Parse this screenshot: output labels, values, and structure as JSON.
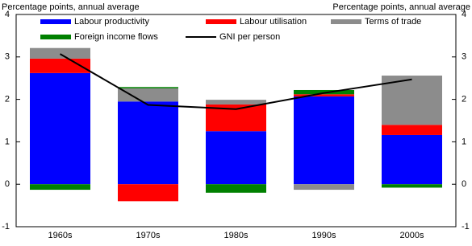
{
  "chart_data": {
    "type": "bar",
    "y_label_left": "Percentage points, annual average",
    "y_label_right": "Percentage points, annual average",
    "stacked": true,
    "categories": [
      "1960s",
      "1970s",
      "1980s",
      "1990s",
      "2000s"
    ],
    "series": [
      {
        "name": "Labour productivity",
        "color": "#0000ff",
        "values": [
          2.62,
          1.95,
          1.25,
          2.07,
          1.16
        ]
      },
      {
        "name": "Labour utilisation",
        "color": "#ff0000",
        "values": [
          0.34,
          -0.4,
          0.63,
          0.05,
          0.24
        ]
      },
      {
        "name": "Terms of trade",
        "color": "#8c8c8c",
        "values": [
          0.25,
          0.31,
          0.11,
          -0.13,
          1.16
        ]
      },
      {
        "name": "Foreign income flows",
        "color": "#008000",
        "values": [
          -0.13,
          0.03,
          -0.2,
          0.1,
          -0.08
        ]
      },
      {
        "name": "GNI per person",
        "color": "#000000",
        "type": "line",
        "values": [
          3.07,
          1.87,
          1.77,
          2.15,
          2.47
        ]
      }
    ],
    "ylim": [
      -1,
      4
    ],
    "yticks": [
      -1,
      0,
      1,
      2,
      3,
      4
    ],
    "y2lim": [
      -1,
      4
    ],
    "y2ticks": [
      -1,
      0,
      1,
      2,
      3,
      4
    ]
  }
}
